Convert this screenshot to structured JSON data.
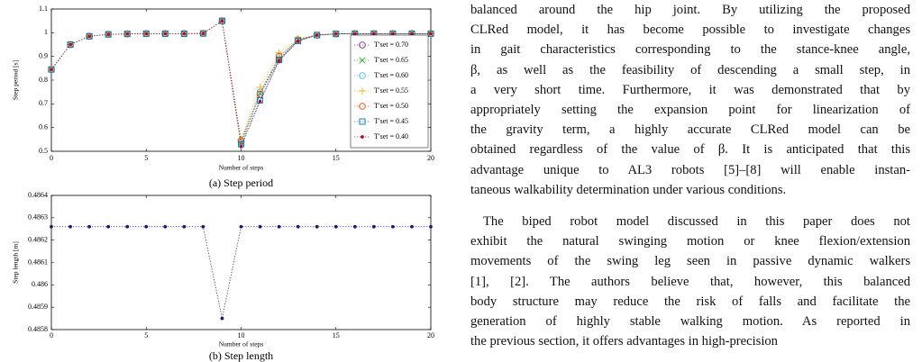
{
  "chart_data": [
    {
      "type": "line",
      "caption": "(a) Step period",
      "xlabel": "Number of steps",
      "ylabel": "Step period [s]",
      "x": [
        0,
        1,
        2,
        3,
        4,
        5,
        6,
        7,
        8,
        9,
        10,
        11,
        12,
        13,
        14,
        15,
        16,
        17,
        18,
        19,
        20
      ],
      "xlim": [
        0,
        20
      ],
      "xticks": [
        0,
        5,
        10,
        15,
        20
      ],
      "ylim": [
        0.5,
        1.1
      ],
      "yticks": [
        0.5,
        0.6,
        0.7,
        0.8,
        0.9,
        1,
        1.1
      ],
      "grid": false,
      "legend": "right",
      "series": [
        {
          "name": "T′set = 0.70",
          "color": "#7e2f8e",
          "marker": "circle",
          "values": [
            0.845,
            0.95,
            0.985,
            0.993,
            0.995,
            0.996,
            0.996,
            0.996,
            0.997,
            1.05,
            0.54,
            0.74,
            0.885,
            0.97,
            0.99,
            0.995,
            0.996,
            0.996,
            0.996,
            0.996,
            0.996
          ]
        },
        {
          "name": "T′set = 0.65",
          "color": "#2ca02c",
          "marker": "x",
          "values": [
            0.845,
            0.95,
            0.985,
            0.993,
            0.995,
            0.996,
            0.996,
            0.996,
            0.997,
            1.05,
            0.535,
            0.745,
            0.89,
            0.97,
            0.99,
            0.995,
            0.996,
            0.996,
            0.996,
            0.996,
            0.996
          ]
        },
        {
          "name": "T′set = 0.60",
          "color": "#4dbeee",
          "marker": "circle",
          "values": [
            0.845,
            0.95,
            0.985,
            0.993,
            0.995,
            0.996,
            0.996,
            0.996,
            0.997,
            1.05,
            0.54,
            0.75,
            0.9,
            0.97,
            0.99,
            0.995,
            0.996,
            0.996,
            0.996,
            0.996,
            0.996
          ]
        },
        {
          "name": "T′set = 0.55",
          "color": "#edb120",
          "marker": "plus",
          "values": [
            0.845,
            0.95,
            0.985,
            0.993,
            0.995,
            0.996,
            0.996,
            0.996,
            0.997,
            1.05,
            0.55,
            0.77,
            0.915,
            0.975,
            0.99,
            0.995,
            0.996,
            0.996,
            0.996,
            0.996,
            0.996
          ]
        },
        {
          "name": "T′set = 0.50",
          "color": "#d95319",
          "marker": "circle",
          "values": [
            0.845,
            0.95,
            0.985,
            0.993,
            0.995,
            0.996,
            0.996,
            0.996,
            0.997,
            1.05,
            0.545,
            0.74,
            0.9,
            0.97,
            0.99,
            0.995,
            0.996,
            0.996,
            0.996,
            0.996,
            0.996
          ]
        },
        {
          "name": "T′set = 0.45",
          "color": "#0072bd",
          "marker": "square",
          "values": [
            0.845,
            0.95,
            0.985,
            0.993,
            0.995,
            0.996,
            0.996,
            0.996,
            0.997,
            1.05,
            0.53,
            0.715,
            0.885,
            0.965,
            0.99,
            0.995,
            0.996,
            0.996,
            0.996,
            0.996,
            0.996
          ]
        },
        {
          "name": "T′set = 0.40",
          "color": "#a2142f",
          "marker": "dot",
          "values": [
            0.845,
            0.95,
            0.985,
            0.993,
            0.995,
            0.996,
            0.996,
            0.996,
            0.997,
            1.05,
            0.52,
            0.71,
            0.88,
            0.965,
            0.99,
            0.995,
            0.996,
            0.996,
            0.996,
            0.996,
            0.996
          ]
        }
      ]
    },
    {
      "type": "line",
      "caption": "(b) Step length",
      "xlabel": "Number of steps",
      "ylabel": "Step length [m]",
      "x": [
        0,
        1,
        2,
        3,
        4,
        5,
        6,
        7,
        8,
        9,
        10,
        11,
        12,
        13,
        14,
        15,
        16,
        17,
        18,
        19,
        20
      ],
      "xlim": [
        0,
        20
      ],
      "xticks": [
        0,
        5,
        10,
        15,
        20
      ],
      "ylim": [
        0.4858,
        0.4864
      ],
      "yticks": [
        0.4858,
        0.4859,
        0.486,
        0.4861,
        0.4862,
        0.4863,
        0.4864
      ],
      "grid": false,
      "series": [
        {
          "color": "#1a1a6e",
          "marker": "dot",
          "values": [
            0.48626,
            0.48626,
            0.48626,
            0.48626,
            0.48626,
            0.48626,
            0.48626,
            0.48626,
            0.48626,
            0.48585,
            0.48626,
            0.48626,
            0.48626,
            0.48626,
            0.48626,
            0.48626,
            0.48626,
            0.48626,
            0.48626,
            0.48626,
            0.48626
          ]
        }
      ]
    }
  ],
  "text": {
    "paragraphs": [
      [
        "balanced around the hip joint. By utilizing the proposed",
        "CLRed model, it has become possible to investigate changes",
        "in gait characteristics corresponding to the stance-knee angle,",
        "β, as well as the feasibility of descending a small step, in",
        "a very short time. Furthermore, it was demonstrated that by",
        "appropriately setting the expansion point for linearization of",
        "the gravity term, a highly accurate CLRed model can be",
        "obtained regardless of the value of β. It is anticipated that this",
        "advantage unique to AL3 robots [5]–[8] will enable instan-",
        "taneous walkability determination under various conditions."
      ],
      [
        "The biped robot model discussed in this paper does not",
        "exhibit the natural swinging motion or knee flexion/extension",
        "movements of the swing leg seen in passive dynamic walkers",
        "[1], [2]. The authors believe that, however, this balanced",
        "body structure may reduce the risk of falls and facilitate the",
        "generation of highly stable walking motion. As reported in",
        "the previous section, it offers advantages in high-precision"
      ]
    ]
  }
}
